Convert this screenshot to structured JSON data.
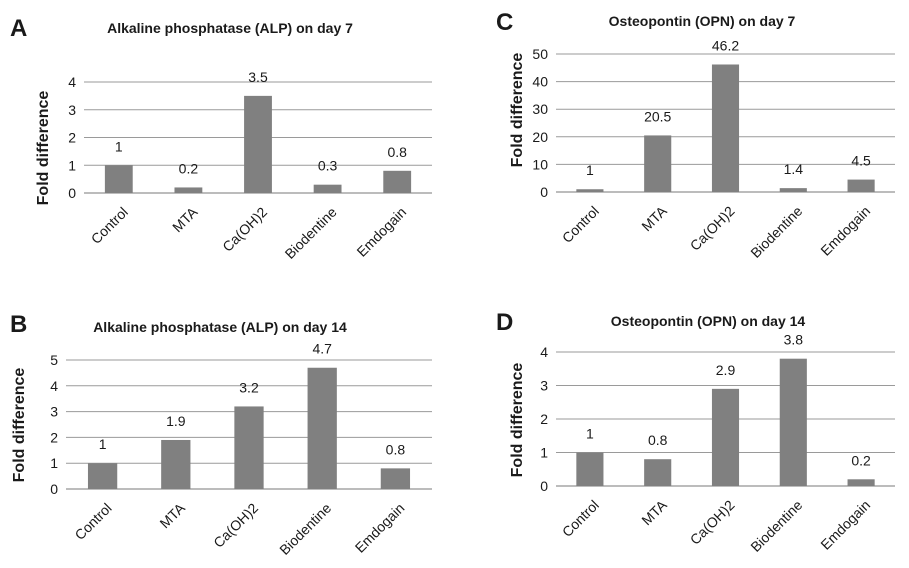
{
  "style": {
    "bar_color": "#808080",
    "grid_color": "#9a9a9a"
  },
  "chart_data": [
    {
      "panel": "A",
      "type": "bar",
      "title": "Alkaline phosphatase (ALP) on day 7",
      "ylabel": "Fold difference",
      "xlabel": "",
      "categories": [
        "Control",
        "MTA",
        "Ca(OH)2",
        "Biodentine",
        "Emdogain"
      ],
      "values": [
        1,
        0.2,
        3.5,
        0.3,
        0.8
      ],
      "data_labels": [
        "1",
        "0.2",
        "3.5",
        "0.3",
        "0.8"
      ],
      "ylim": [
        0,
        4
      ],
      "yticks": [
        0,
        1,
        2,
        3,
        4
      ],
      "grid": true,
      "legend": "none"
    },
    {
      "panel": "C",
      "type": "bar",
      "title": "Osteopontin (OPN) on day 7",
      "ylabel": "Fold difference",
      "xlabel": "",
      "categories": [
        "Control",
        "MTA",
        "Ca(OH)2",
        "Biodentine",
        "Emdogain"
      ],
      "values": [
        1,
        20.5,
        46.2,
        1.4,
        4.5
      ],
      "data_labels": [
        "1",
        "20.5",
        "46.2",
        "1.4",
        "4.5"
      ],
      "ylim": [
        0,
        50
      ],
      "yticks": [
        0,
        10,
        20,
        30,
        40,
        50
      ],
      "grid": true,
      "legend": "none"
    },
    {
      "panel": "B",
      "type": "bar",
      "title": "Alkaline phosphatase (ALP) on day 14",
      "ylabel": "Fold difference",
      "xlabel": "",
      "categories": [
        "Control",
        "MTA",
        "Ca(OH)2",
        "Biodentine",
        "Emdogain"
      ],
      "values": [
        1,
        1.9,
        3.2,
        4.7,
        0.8
      ],
      "data_labels": [
        "1",
        "1.9",
        "3.2",
        "4.7",
        "0.8"
      ],
      "ylim": [
        0,
        5
      ],
      "yticks": [
        0,
        1,
        2,
        3,
        4,
        5
      ],
      "grid": true,
      "legend": "none"
    },
    {
      "panel": "D",
      "type": "bar",
      "title": "Osteopontin (OPN) on day 14",
      "ylabel": "Fold difference",
      "xlabel": "",
      "categories": [
        "Control",
        "MTA",
        "Ca(OH)2",
        "Biodentine",
        "Emdogain"
      ],
      "values": [
        1,
        0.8,
        2.9,
        3.8,
        0.2
      ],
      "data_labels": [
        "1",
        "0.8",
        "2.9",
        "3.8",
        "0.2"
      ],
      "ylim": [
        0,
        4
      ],
      "yticks": [
        0,
        1,
        2,
        3,
        4
      ],
      "grid": true,
      "legend": "none"
    }
  ]
}
